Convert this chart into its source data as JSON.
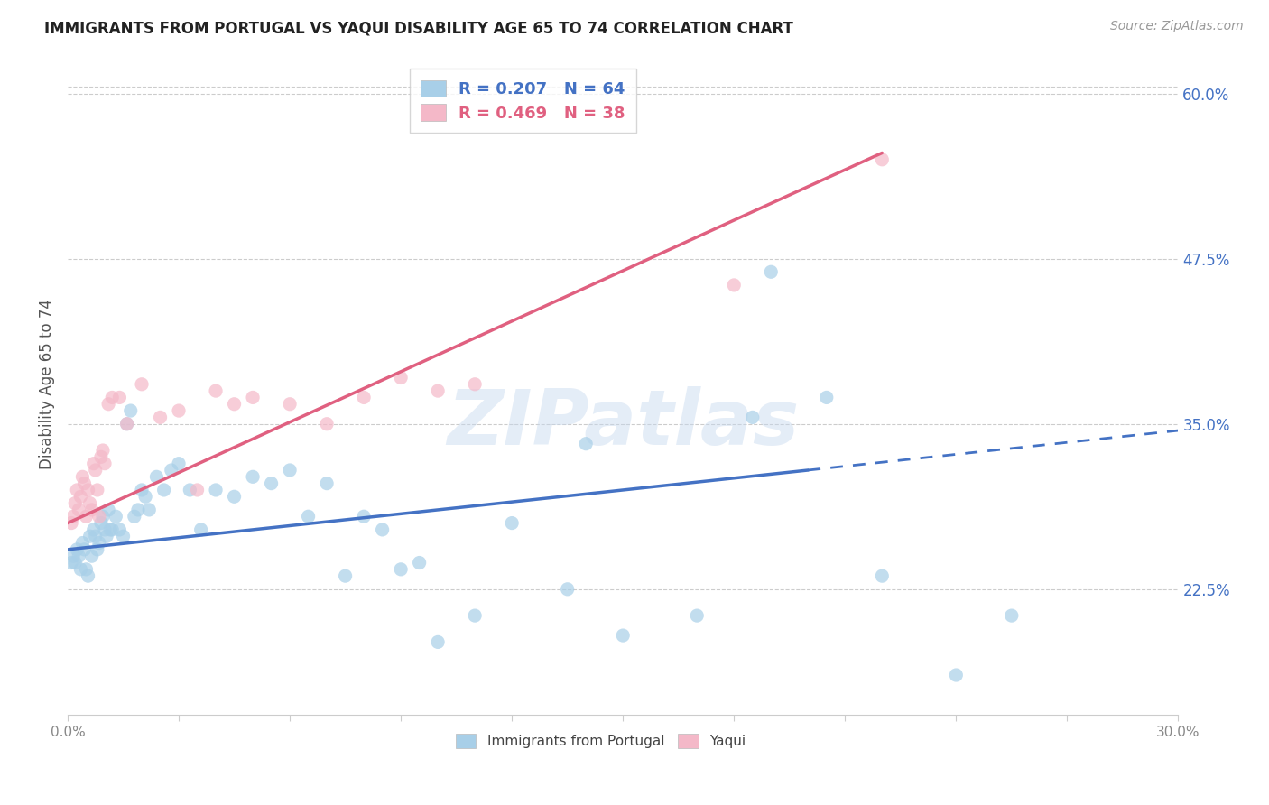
{
  "title": "IMMIGRANTS FROM PORTUGAL VS YAQUI DISABILITY AGE 65 TO 74 CORRELATION CHART",
  "source": "Source: ZipAtlas.com",
  "ylabel": "Disability Age 65 to 74",
  "right_yticks": [
    22.5,
    35.0,
    47.5,
    60.0
  ],
  "right_ytick_labels": [
    "22.5%",
    "35.0%",
    "47.5%",
    "60.0%"
  ],
  "legend_label1": "R = 0.207   N = 64",
  "legend_label2": "R = 0.469   N = 38",
  "color_blue": "#a8cfe8",
  "color_pink": "#f4b8c8",
  "color_blue_line": "#4472c4",
  "color_pink_line": "#e06080",
  "color_blue_text": "#4472c4",
  "color_pink_text": "#e06080",
  "watermark": "ZIPatlas",
  "legend_footer1": "Immigrants from Portugal",
  "legend_footer2": "Yaqui",
  "xmin": 0.0,
  "xmax": 30.0,
  "ymin": 13.0,
  "ymax": 63.0,
  "blue_x": [
    0.1,
    0.15,
    0.2,
    0.25,
    0.3,
    0.35,
    0.4,
    0.45,
    0.5,
    0.55,
    0.6,
    0.65,
    0.7,
    0.75,
    0.8,
    0.85,
    0.9,
    0.95,
    1.0,
    1.05,
    1.1,
    1.15,
    1.2,
    1.3,
    1.4,
    1.5,
    1.6,
    1.7,
    1.8,
    1.9,
    2.0,
    2.1,
    2.2,
    2.4,
    2.6,
    2.8,
    3.0,
    3.3,
    3.6,
    4.0,
    4.5,
    5.0,
    5.5,
    6.0,
    6.5,
    7.0,
    7.5,
    8.0,
    9.0,
    10.0,
    11.0,
    12.0,
    13.5,
    15.0,
    17.0,
    18.5,
    20.5,
    22.0,
    24.0,
    25.5,
    8.5,
    9.5,
    14.0,
    19.0
  ],
  "blue_y": [
    24.5,
    25.0,
    24.5,
    25.5,
    25.0,
    24.0,
    26.0,
    25.5,
    24.0,
    23.5,
    26.5,
    25.0,
    27.0,
    26.5,
    25.5,
    26.0,
    27.5,
    28.0,
    27.0,
    26.5,
    28.5,
    27.0,
    27.0,
    28.0,
    27.0,
    26.5,
    35.0,
    36.0,
    28.0,
    28.5,
    30.0,
    29.5,
    28.5,
    31.0,
    30.0,
    31.5,
    32.0,
    30.0,
    27.0,
    30.0,
    29.5,
    31.0,
    30.5,
    31.5,
    28.0,
    30.5,
    23.5,
    28.0,
    24.0,
    18.5,
    20.5,
    27.5,
    22.5,
    19.0,
    20.5,
    35.5,
    37.0,
    23.5,
    16.0,
    20.5,
    27.0,
    24.5,
    33.5,
    46.5
  ],
  "pink_x": [
    0.1,
    0.15,
    0.2,
    0.25,
    0.3,
    0.35,
    0.4,
    0.45,
    0.5,
    0.55,
    0.6,
    0.65,
    0.7,
    0.75,
    0.8,
    0.85,
    0.9,
    0.95,
    1.0,
    1.1,
    1.2,
    1.4,
    1.6,
    2.0,
    2.5,
    3.0,
    3.5,
    4.0,
    4.5,
    5.0,
    6.0,
    7.0,
    8.0,
    9.0,
    10.0,
    11.0,
    18.0,
    22.0
  ],
  "pink_y": [
    27.5,
    28.0,
    29.0,
    30.0,
    28.5,
    29.5,
    31.0,
    30.5,
    28.0,
    30.0,
    29.0,
    28.5,
    32.0,
    31.5,
    30.0,
    28.0,
    32.5,
    33.0,
    32.0,
    36.5,
    37.0,
    37.0,
    35.0,
    38.0,
    35.5,
    36.0,
    30.0,
    37.5,
    36.5,
    37.0,
    36.5,
    35.0,
    37.0,
    38.5,
    37.5,
    38.0,
    45.5,
    55.0
  ],
  "blue_line_x0": 0.0,
  "blue_line_y0": 25.5,
  "blue_line_x1": 20.0,
  "blue_line_y1": 31.5,
  "blue_dash_x0": 20.0,
  "blue_dash_y0": 31.5,
  "blue_dash_x1": 30.0,
  "blue_dash_y1": 34.5,
  "pink_line_x0": 0.0,
  "pink_line_y0": 27.5,
  "pink_line_x1": 22.0,
  "pink_line_y1": 55.5
}
